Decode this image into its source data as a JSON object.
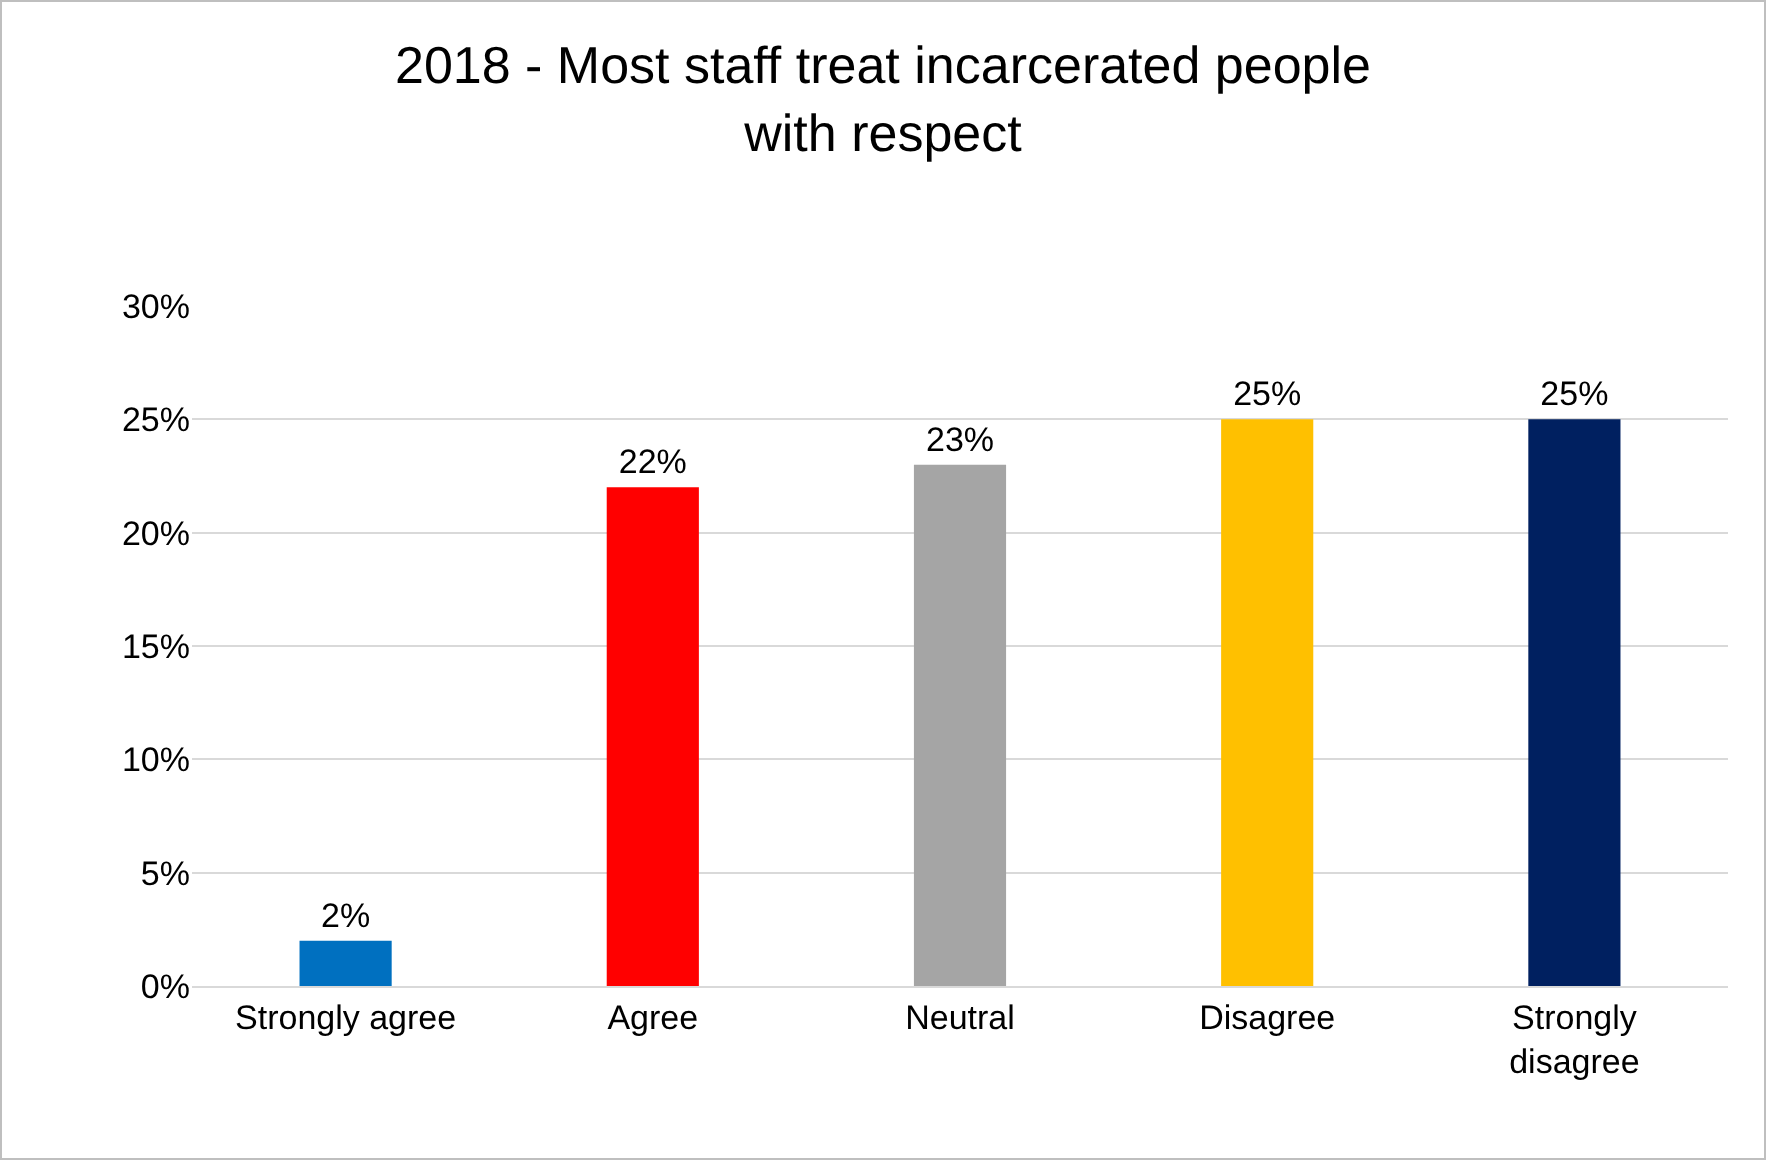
{
  "chart_data": {
    "type": "bar",
    "title": "2018 - Most staff treat incarcerated people with respect",
    "categories": [
      "Strongly agree",
      "Agree",
      "Neutral",
      "Disagree",
      "Strongly disagree"
    ],
    "values": [
      2,
      22,
      23,
      25,
      25
    ],
    "colors": [
      "#0070c0",
      "#ff0000",
      "#a5a5a5",
      "#ffc000",
      "#002060"
    ],
    "value_labels": [
      "2%",
      "22%",
      "23%",
      "25%",
      "25%"
    ],
    "ylim": [
      0,
      30
    ],
    "yticks": [
      {
        "value": 0,
        "label": "0%"
      },
      {
        "value": 5,
        "label": "5%"
      },
      {
        "value": 10,
        "label": "10%"
      },
      {
        "value": 15,
        "label": "15%"
      },
      {
        "value": 20,
        "label": "20%"
      },
      {
        "value": 25,
        "label": "25%"
      },
      {
        "value": 30,
        "label": "30%"
      }
    ],
    "grid": "y"
  }
}
